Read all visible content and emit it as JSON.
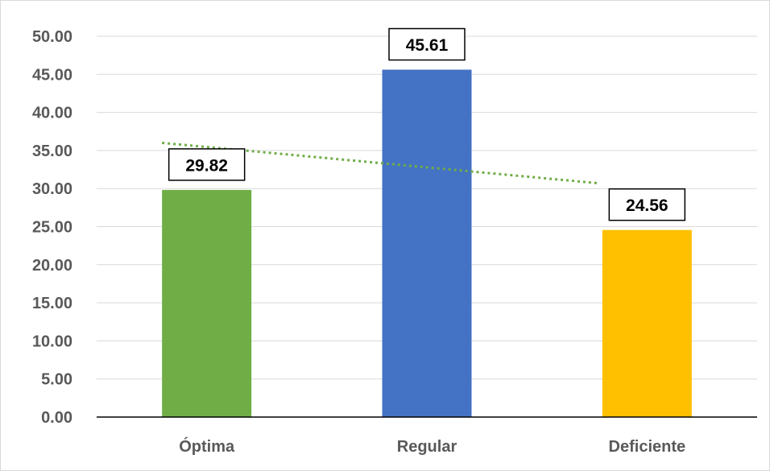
{
  "chart_data": {
    "type": "bar",
    "categories": [
      "Óptima",
      "Regular",
      "Deficiente"
    ],
    "values": [
      29.82,
      45.61,
      24.56
    ],
    "data_labels": [
      "29.82",
      "45.61",
      "24.56"
    ],
    "bar_colors": [
      "#70ad47",
      "#4472c4",
      "#ffc000"
    ],
    "ylim": [
      0,
      50
    ],
    "y_ticks": [
      "0.00",
      "5.00",
      "10.00",
      "15.00",
      "20.00",
      "25.00",
      "30.00",
      "35.00",
      "40.00",
      "45.00",
      "50.00"
    ],
    "grid": true,
    "trendline": {
      "type": "linear",
      "style": "dotted",
      "color": "#70ad47",
      "start_value": 36.0,
      "end_value": 30.7
    },
    "title": "",
    "xlabel": "",
    "ylabel": ""
  }
}
